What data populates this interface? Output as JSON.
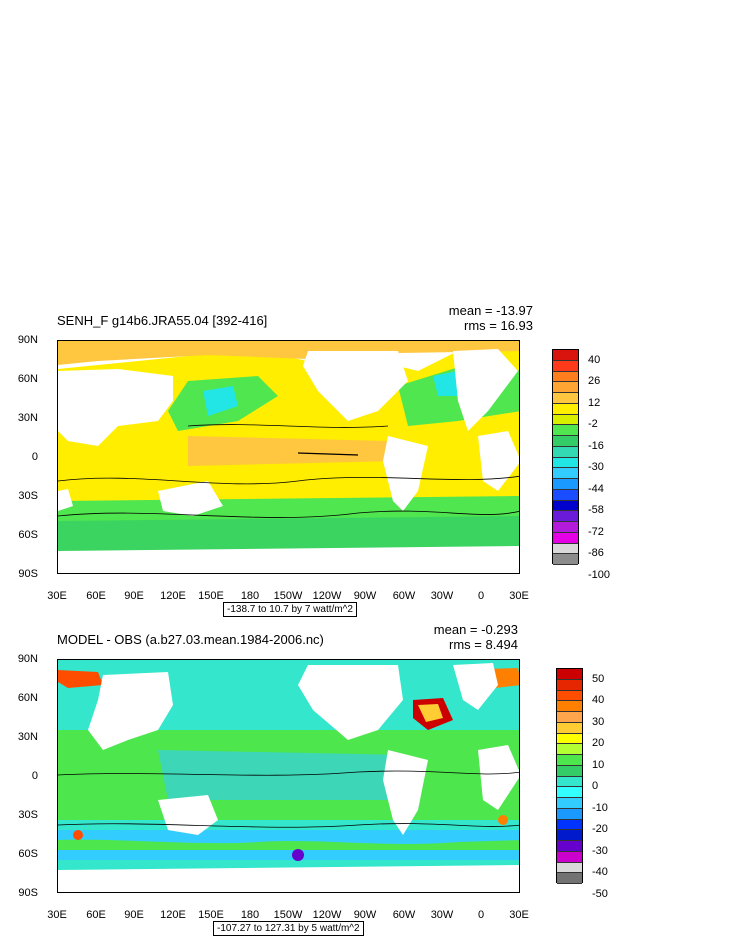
{
  "panels": [
    {
      "title": "SENH_F g14b6.JRA55.04 [392-416]",
      "mean": "mean = -13.97",
      "rms": "rms = 16.93",
      "range": "-138.7 to 10.7 by 7 watt/m^2",
      "colorbar": {
        "labels": [
          "40",
          "26",
          "12",
          "-2",
          "-16",
          "-30",
          "-44",
          "-58",
          "-72",
          "-86",
          "-100"
        ],
        "colors": [
          "#d9140f",
          "#ff3a1a",
          "#ff7f1f",
          "#ffa533",
          "#ffc640",
          "#ffee00",
          "#d8f000",
          "#50e650",
          "#33cc66",
          "#33d9b3",
          "#22e6e6",
          "#33ccff",
          "#1a99ff",
          "#1a4dff",
          "#0000cc",
          "#6a1ad9",
          "#b31ad9",
          "#e600e6",
          "#d9d9d9",
          "#8c8c8c"
        ]
      }
    },
    {
      "title": "MODEL - OBS (a.b27.03.mean.1984-2006.nc)",
      "mean": "mean = -0.293",
      "rms": "rms = 8.494",
      "range": "-107.27 to 127.31 by 5 watt/m^2",
      "colorbar": {
        "labels": [
          "50",
          "40",
          "30",
          "20",
          "10",
          "0",
          "-10",
          "-20",
          "-30",
          "-40",
          "-50"
        ],
        "colors": [
          "#cc0000",
          "#e62600",
          "#ff4d00",
          "#ff8000",
          "#ffa64d",
          "#ffcc33",
          "#ffff00",
          "#b3ff33",
          "#4de64d",
          "#33cc66",
          "#33e6cc",
          "#33ffff",
          "#33ccff",
          "#1a99ff",
          "#0033ff",
          "#001acc",
          "#6600cc",
          "#cc00cc",
          "#d9d9d9",
          "#737373"
        ]
      }
    }
  ],
  "lat_labels": [
    "90N",
    "60N",
    "30N",
    "0",
    "30S",
    "60S",
    "90S"
  ],
  "lon_labels": [
    "30E",
    "60E",
    "90E",
    "120E",
    "150E",
    "180",
    "150W",
    "120W",
    "90W",
    "60W",
    "30W",
    "0",
    "30E"
  ]
}
